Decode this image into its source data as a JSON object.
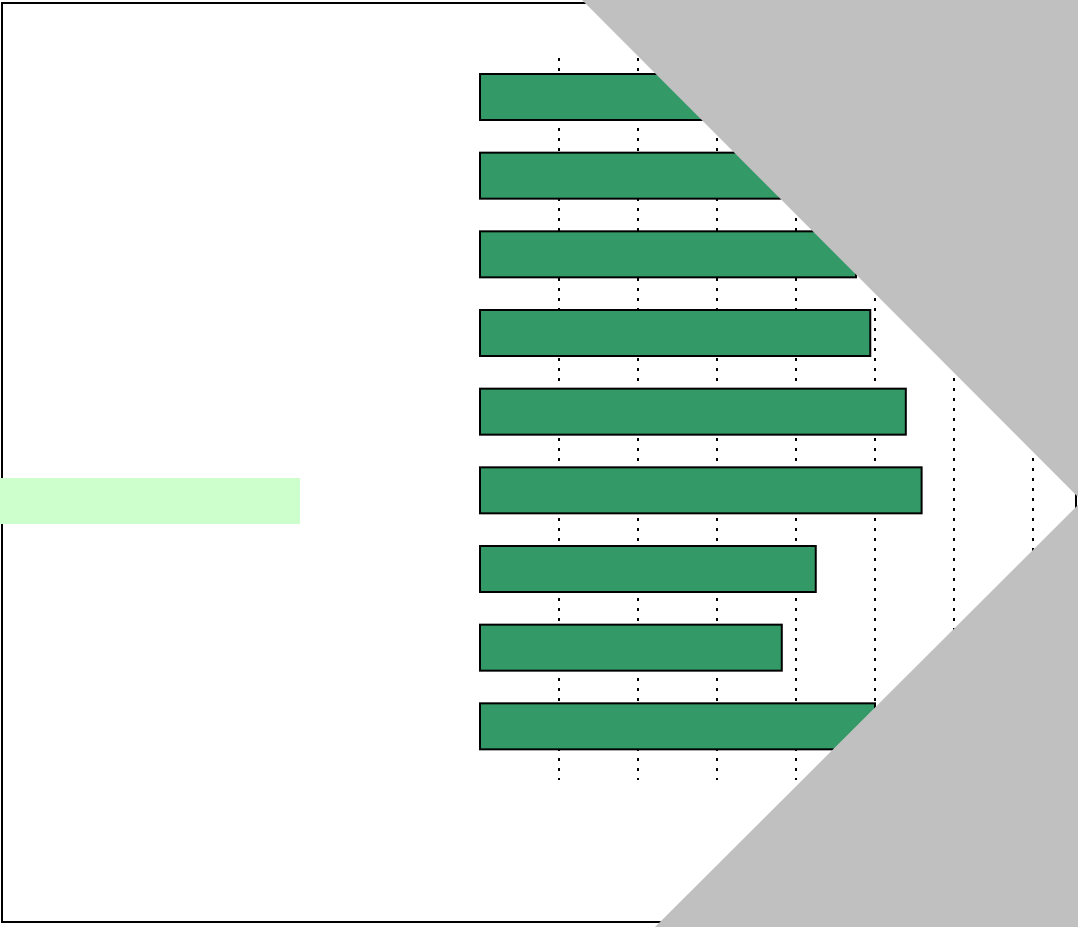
{
  "chart_data": {
    "type": "bar",
    "orientation": "horizontal",
    "values": [
      4.8,
      5.0,
      4.76,
      4.94,
      5.39,
      5.59,
      4.25,
      3.82,
      5.0
    ],
    "color": "#339966",
    "xlim": [
      0,
      7.5
    ],
    "xticks": [
      1,
      2,
      3,
      4,
      5,
      6,
      7
    ],
    "grid": true
  }
}
